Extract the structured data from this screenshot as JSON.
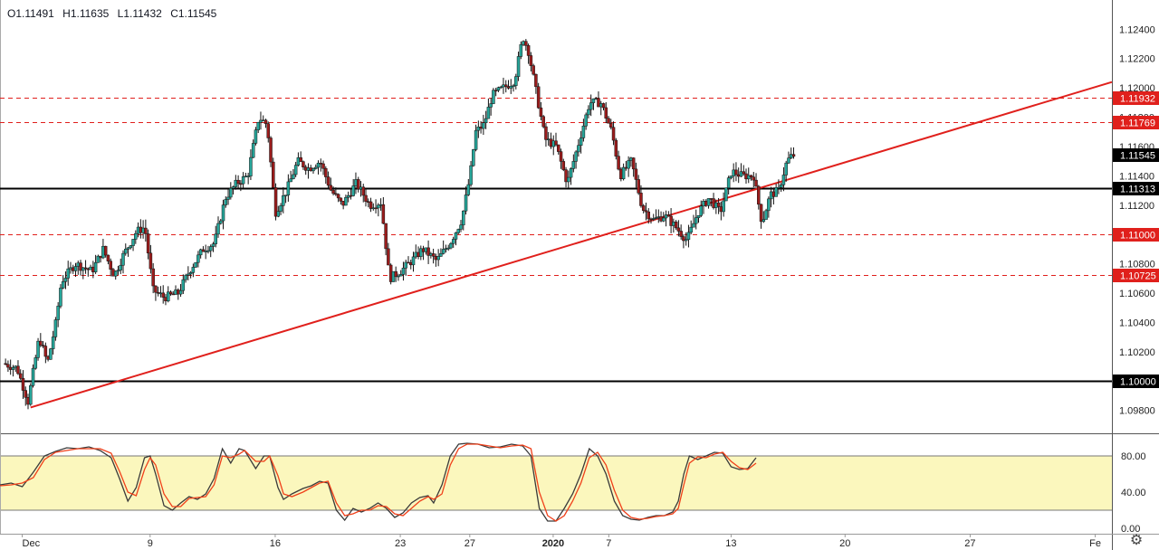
{
  "ohlc_header": {
    "open": "O1.11491",
    "high": "H1.11635",
    "low": "L1.11432",
    "close": "C1.11545"
  },
  "colors": {
    "bull": "#26a69a",
    "bear": "#9b1c1c",
    "wick": "#111111",
    "trendline": "#e0201c",
    "level_solid": "#000000",
    "level_dashed": "#e0201c",
    "stoch_k": "#3a3a3a",
    "stoch_d": "#f0401a",
    "stoch_band": "#fbf7bd"
  },
  "icons": {
    "settings": "gear-icon"
  },
  "chart_data": [
    {
      "type": "candlestick",
      "title": "",
      "ylim": [
        1.0965,
        1.1255
      ],
      "price_ticks": [
        "1.12400",
        "1.12200",
        "1.12000",
        "1.11800",
        "1.11600",
        "1.11400",
        "1.11200",
        "1.11000",
        "1.10800",
        "1.10600",
        "1.10400",
        "1.10200",
        "1.09800"
      ],
      "x_ticks": [
        {
          "label": "Dec",
          "x": 0
        },
        {
          "label": "9",
          "x": 46
        },
        {
          "label": "16",
          "x": 91
        },
        {
          "label": "23",
          "x": 136
        },
        {
          "label": "27",
          "x": 161
        },
        {
          "label": "2020",
          "x": 191
        },
        {
          "label": "7",
          "x": 211
        },
        {
          "label": "13",
          "x": 255
        },
        {
          "label": "20",
          "x": 296
        },
        {
          "label": "27",
          "x": 341
        },
        {
          "label": "Fe",
          "x": 386
        }
      ],
      "x_range": [
        -8,
        392
      ],
      "levels": [
        {
          "price": 1.11932,
          "label": "1.11932",
          "style": "dashed"
        },
        {
          "price": 1.11769,
          "label": "1.11769",
          "style": "dashed"
        },
        {
          "price": 1.11313,
          "label": "1.11313",
          "style": "solid"
        },
        {
          "price": 1.11,
          "label": "1.11000",
          "style": "dashed"
        },
        {
          "price": 1.10725,
          "label": "1.10725",
          "style": "dashed"
        },
        {
          "price": 1.1,
          "label": "1.10000",
          "style": "solid"
        }
      ],
      "current_price": {
        "price": 1.11545,
        "label": "1.11545"
      },
      "trendline": [
        {
          "x": 3,
          "price": 1.0982
        },
        {
          "x": 392,
          "price": 1.1204
        }
      ],
      "anchors": [
        {
          "x": -6,
          "price": 1.1012
        },
        {
          "x": -1,
          "price": 1.1009
        },
        {
          "x": 3,
          "price": 1.0986
        },
        {
          "x": 7,
          "price": 1.103
        },
        {
          "x": 10,
          "price": 1.1012
        },
        {
          "x": 13,
          "price": 1.104
        },
        {
          "x": 15,
          "price": 1.1068
        },
        {
          "x": 20,
          "price": 1.108
        },
        {
          "x": 26,
          "price": 1.1075
        },
        {
          "x": 30,
          "price": 1.109
        },
        {
          "x": 34,
          "price": 1.1072
        },
        {
          "x": 37,
          "price": 1.1085
        },
        {
          "x": 42,
          "price": 1.1102
        },
        {
          "x": 45,
          "price": 1.1105
        },
        {
          "x": 48,
          "price": 1.1062
        },
        {
          "x": 52,
          "price": 1.1057
        },
        {
          "x": 57,
          "price": 1.106
        },
        {
          "x": 61,
          "price": 1.1075
        },
        {
          "x": 66,
          "price": 1.109
        },
        {
          "x": 70,
          "price": 1.1094
        },
        {
          "x": 74,
          "price": 1.1125
        },
        {
          "x": 78,
          "price": 1.1135
        },
        {
          "x": 82,
          "price": 1.114
        },
        {
          "x": 86,
          "price": 1.118
        },
        {
          "x": 89,
          "price": 1.1175
        },
        {
          "x": 92,
          "price": 1.1115
        },
        {
          "x": 96,
          "price": 1.113
        },
        {
          "x": 100,
          "price": 1.115
        },
        {
          "x": 104,
          "price": 1.1145
        },
        {
          "x": 108,
          "price": 1.115
        },
        {
          "x": 112,
          "price": 1.113
        },
        {
          "x": 116,
          "price": 1.112
        },
        {
          "x": 121,
          "price": 1.1135
        },
        {
          "x": 126,
          "price": 1.112
        },
        {
          "x": 130,
          "price": 1.1122
        },
        {
          "x": 133,
          "price": 1.107
        },
        {
          "x": 137,
          "price": 1.1075
        },
        {
          "x": 141,
          "price": 1.1082
        },
        {
          "x": 145,
          "price": 1.109
        },
        {
          "x": 150,
          "price": 1.1082
        },
        {
          "x": 155,
          "price": 1.1095
        },
        {
          "x": 159,
          "price": 1.111
        },
        {
          "x": 162,
          "price": 1.114
        },
        {
          "x": 164,
          "price": 1.117
        },
        {
          "x": 167,
          "price": 1.1175
        },
        {
          "x": 170,
          "price": 1.1195
        },
        {
          "x": 174,
          "price": 1.12
        },
        {
          "x": 178,
          "price": 1.1205
        },
        {
          "x": 181,
          "price": 1.1235
        },
        {
          "x": 183,
          "price": 1.1225
        },
        {
          "x": 186,
          "price": 1.1195
        },
        {
          "x": 189,
          "price": 1.1165
        },
        {
          "x": 193,
          "price": 1.116
        },
        {
          "x": 197,
          "price": 1.1135
        },
        {
          "x": 201,
          "price": 1.1162
        },
        {
          "x": 205,
          "price": 1.119
        },
        {
          "x": 209,
          "price": 1.119
        },
        {
          "x": 213,
          "price": 1.117
        },
        {
          "x": 216,
          "price": 1.114
        },
        {
          "x": 220,
          "price": 1.115
        },
        {
          "x": 224,
          "price": 1.1118
        },
        {
          "x": 228,
          "price": 1.111
        },
        {
          "x": 232,
          "price": 1.1113
        },
        {
          "x": 236,
          "price": 1.1105
        },
        {
          "x": 240,
          "price": 1.1096
        },
        {
          "x": 244,
          "price": 1.1115
        },
        {
          "x": 248,
          "price": 1.1125
        },
        {
          "x": 252,
          "price": 1.1115
        },
        {
          "x": 256,
          "price": 1.1143
        },
        {
          "x": 260,
          "price": 1.114
        },
        {
          "x": 264,
          "price": 1.114
        },
        {
          "x": 267,
          "price": 1.1108
        },
        {
          "x": 270,
          "price": 1.1127
        },
        {
          "x": 273,
          "price": 1.113
        },
        {
          "x": 276,
          "price": 1.115
        },
        {
          "x": 278,
          "price": 1.1154
        }
      ],
      "candle_step_days": 0.9
    },
    {
      "type": "line",
      "title": "",
      "ylim": [
        0,
        100
      ],
      "band": [
        20,
        80
      ],
      "y_ticks": [
        "80.00",
        "40.00",
        "0.00"
      ],
      "series": [
        {
          "name": "",
          "points": [
            [
              -8,
              48
            ],
            [
              -4,
              50
            ],
            [
              0,
              46
            ],
            [
              4,
              62
            ],
            [
              8,
              80
            ],
            [
              12,
              85
            ],
            [
              16,
              89
            ],
            [
              20,
              88
            ],
            [
              24,
              90
            ],
            [
              28,
              86
            ],
            [
              32,
              78
            ],
            [
              35,
              55
            ],
            [
              38,
              30
            ],
            [
              41,
              45
            ],
            [
              44,
              78
            ],
            [
              46,
              80
            ],
            [
              48,
              60
            ],
            [
              51,
              25
            ],
            [
              54,
              20
            ],
            [
              57,
              28
            ],
            [
              60,
              35
            ],
            [
              63,
              32
            ],
            [
              66,
              38
            ],
            [
              69,
              55
            ],
            [
              72,
              88
            ],
            [
              75,
              72
            ],
            [
              78,
              88
            ],
            [
              80,
              86
            ],
            [
              84,
              66
            ],
            [
              87,
              80
            ],
            [
              89,
              80
            ],
            [
              92,
              45
            ],
            [
              94,
              32
            ],
            [
              97,
              38
            ],
            [
              101,
              44
            ],
            [
              104,
              47
            ],
            [
              107,
              52
            ],
            [
              110,
              50
            ],
            [
              113,
              20
            ],
            [
              116,
              9
            ],
            [
              119,
              22
            ],
            [
              122,
              18
            ],
            [
              125,
              22
            ],
            [
              128,
              28
            ],
            [
              131,
              22
            ],
            [
              134,
              12
            ],
            [
              137,
              17
            ],
            [
              140,
              28
            ],
            [
              143,
              34
            ],
            [
              146,
              36
            ],
            [
              148,
              28
            ],
            [
              151,
              48
            ],
            [
              154,
              80
            ],
            [
              157,
              93
            ],
            [
              160,
              94
            ],
            [
              164,
              93
            ],
            [
              168,
              89
            ],
            [
              172,
              90
            ],
            [
              176,
              93
            ],
            [
              180,
              91
            ],
            [
              183,
              80
            ],
            [
              186,
              22
            ],
            [
              189,
              8
            ],
            [
              192,
              8
            ],
            [
              195,
              22
            ],
            [
              198,
              38
            ],
            [
              201,
              60
            ],
            [
              204,
              88
            ],
            [
              207,
              80
            ],
            [
              210,
              60
            ],
            [
              213,
              30
            ],
            [
              216,
              14
            ],
            [
              219,
              10
            ],
            [
              222,
              9
            ],
            [
              225,
              12
            ],
            [
              228,
              14
            ],
            [
              231,
              14
            ],
            [
              234,
              18
            ],
            [
              236,
              30
            ],
            [
              238,
              60
            ],
            [
              240,
              80
            ],
            [
              243,
              76
            ],
            [
              246,
              80
            ],
            [
              249,
              84
            ],
            [
              252,
              83
            ],
            [
              255,
              68
            ],
            [
              258,
              65
            ],
            [
              261,
              66
            ],
            [
              264,
              78
            ]
          ]
        },
        {
          "name": "",
          "points": [
            [
              -8,
              47
            ],
            [
              -4,
              48
            ],
            [
              0,
              50
            ],
            [
              4,
              56
            ],
            [
              8,
              76
            ],
            [
              12,
              84
            ],
            [
              16,
              86
            ],
            [
              20,
              88
            ],
            [
              24,
              88
            ],
            [
              28,
              88
            ],
            [
              32,
              83
            ],
            [
              35,
              63
            ],
            [
              38,
              40
            ],
            [
              41,
              36
            ],
            [
              44,
              65
            ],
            [
              46,
              78
            ],
            [
              48,
              70
            ],
            [
              51,
              38
            ],
            [
              54,
              24
            ],
            [
              57,
              24
            ],
            [
              60,
              33
            ],
            [
              63,
              34
            ],
            [
              66,
              35
            ],
            [
              69,
              48
            ],
            [
              72,
              80
            ],
            [
              75,
              78
            ],
            [
              78,
              82
            ],
            [
              80,
              86
            ],
            [
              84,
              74
            ],
            [
              87,
              74
            ],
            [
              89,
              80
            ],
            [
              92,
              58
            ],
            [
              94,
              38
            ],
            [
              97,
              35
            ],
            [
              101,
              40
            ],
            [
              104,
              45
            ],
            [
              107,
              50
            ],
            [
              110,
              52
            ],
            [
              113,
              28
            ],
            [
              116,
              14
            ],
            [
              119,
              16
            ],
            [
              122,
              20
            ],
            [
              125,
              20
            ],
            [
              128,
              25
            ],
            [
              131,
              24
            ],
            [
              134,
              16
            ],
            [
              137,
              14
            ],
            [
              140,
              22
            ],
            [
              143,
              30
            ],
            [
              146,
              35
            ],
            [
              148,
              32
            ],
            [
              151,
              38
            ],
            [
              154,
              70
            ],
            [
              157,
              88
            ],
            [
              160,
              93
            ],
            [
              164,
              93
            ],
            [
              168,
              91
            ],
            [
              172,
              89
            ],
            [
              176,
              91
            ],
            [
              180,
              92
            ],
            [
              183,
              88
            ],
            [
              186,
              40
            ],
            [
              189,
              14
            ],
            [
              192,
              8
            ],
            [
              195,
              14
            ],
            [
              198,
              30
            ],
            [
              201,
              50
            ],
            [
              204,
              78
            ],
            [
              207,
              84
            ],
            [
              210,
              70
            ],
            [
              213,
              42
            ],
            [
              216,
              20
            ],
            [
              219,
              12
            ],
            [
              222,
              10
            ],
            [
              225,
              11
            ],
            [
              228,
              13
            ],
            [
              231,
              14
            ],
            [
              234,
              16
            ],
            [
              236,
              22
            ],
            [
              238,
              48
            ],
            [
              240,
              72
            ],
            [
              243,
              79
            ],
            [
              246,
              78
            ],
            [
              249,
              82
            ],
            [
              252,
              84
            ],
            [
              255,
              74
            ],
            [
              258,
              67
            ],
            [
              261,
              65
            ],
            [
              264,
              72
            ]
          ]
        }
      ]
    }
  ]
}
